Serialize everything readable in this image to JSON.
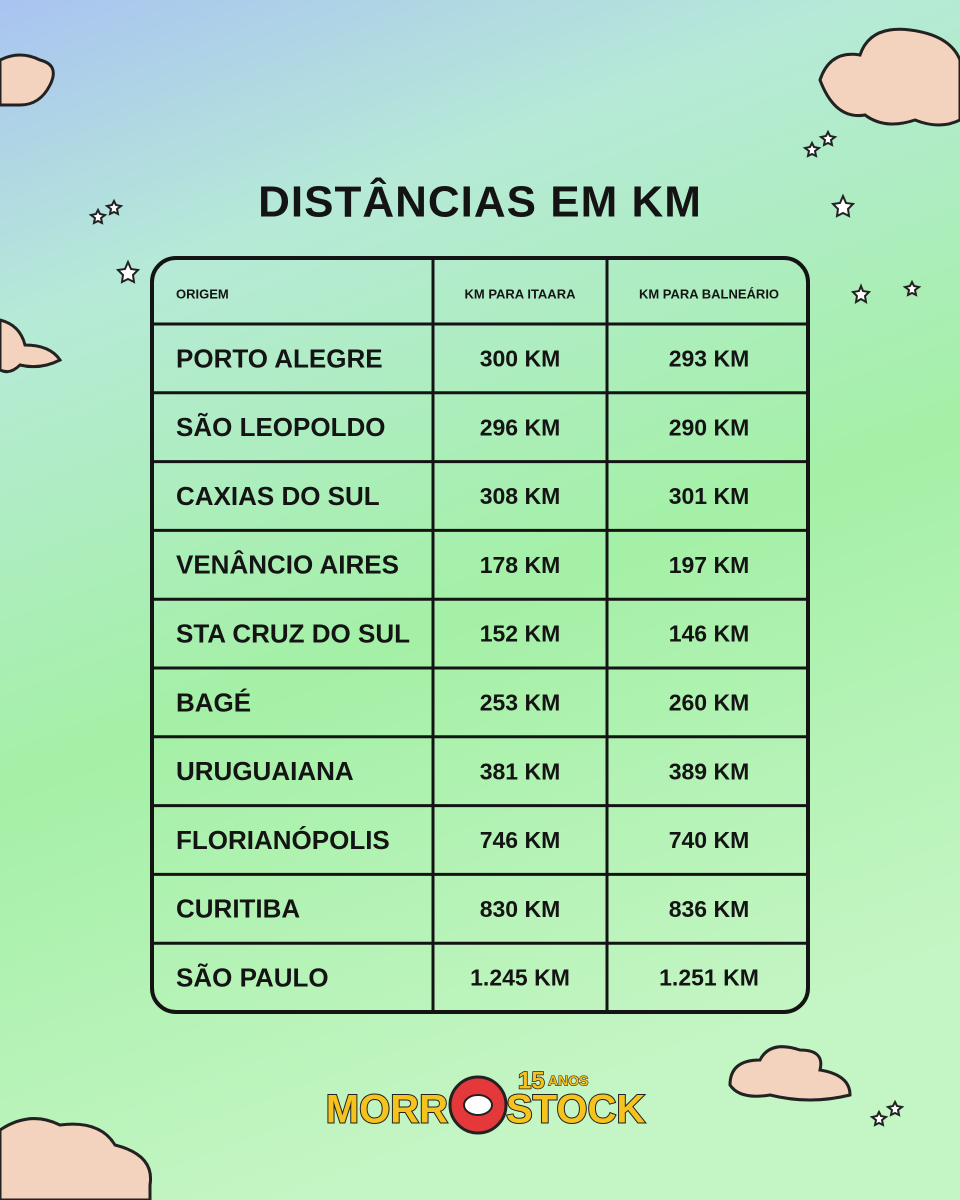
{
  "header": {
    "title": "DISTÂNCIAS EM KM"
  },
  "table": {
    "columns": [
      "ORIGEM",
      "KM PARA ITAARA",
      "KM PARA BALNEÁRIO"
    ],
    "rows": [
      [
        "PORTO ALEGRE",
        "300 KM",
        "293 KM"
      ],
      [
        "SÃO LEOPOLDO",
        "296 KM",
        "290 KM"
      ],
      [
        "CAXIAS DO SUL",
        "308 KM",
        "301 KM"
      ],
      [
        "VENÂNCIO AIRES",
        "178 KM",
        "197 KM"
      ],
      [
        "STA CRUZ DO SUL",
        "152 KM",
        "146 KM"
      ],
      [
        "BAGÉ",
        "253 KM",
        "260 KM"
      ],
      [
        "URUGUAIANA",
        "381 KM",
        "389 KM"
      ],
      [
        "FLORIANÓPOLIS",
        "746 KM",
        "740 KM"
      ],
      [
        "CURITIBA",
        "830 KM",
        "836 KM"
      ],
      [
        "SÃO PAULO",
        "1.245 KM",
        "1.251 KM"
      ]
    ]
  },
  "logo": {
    "left": "MORR",
    "right": "STOCK",
    "number": "15",
    "suffix": "ANOS"
  }
}
